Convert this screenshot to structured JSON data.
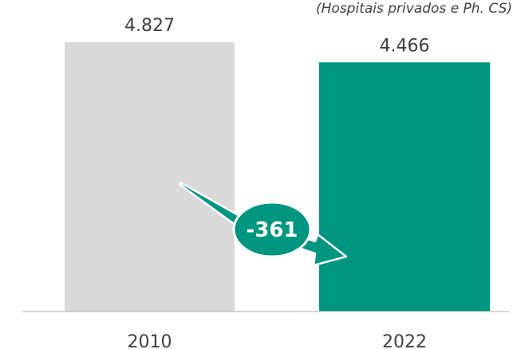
{
  "chart_data": {
    "type": "bar",
    "subtitle": "(Hospitais privados e Ph. CS)",
    "categories": [
      "2010",
      "2022"
    ],
    "values": [
      4827,
      4466
    ],
    "value_labels": [
      "4.827",
      "4.466"
    ],
    "ylim": [
      0,
      5000
    ],
    "grid": false,
    "bar_colors": [
      "#d9d9d9",
      "#009680"
    ],
    "change": {
      "label": "-361",
      "value": -361,
      "color": "#009680"
    }
  }
}
